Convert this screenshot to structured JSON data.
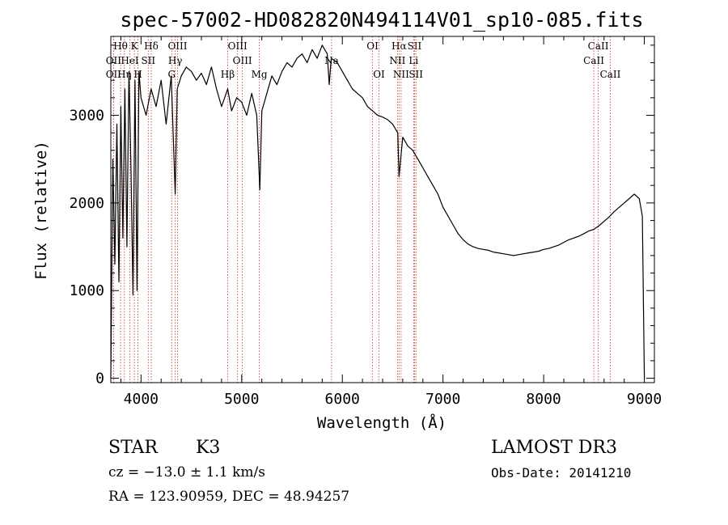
{
  "chart_data": {
    "type": "line",
    "title": "spec-57002-HD082820N494114V01_sp10-085.fits",
    "xlabel": "Wavelength (Å)",
    "ylabel": "Flux (relative)",
    "xlim": [
      3700,
      9100
    ],
    "ylim": [
      -50,
      3900
    ],
    "xticks": [
      4000,
      5000,
      6000,
      7000,
      8000,
      9000
    ],
    "yticks": [
      0,
      1000,
      2000,
      3000
    ],
    "series": [
      {
        "name": "flux",
        "x": [
          3700,
          3720,
          3740,
          3760,
          3780,
          3800,
          3820,
          3840,
          3860,
          3880,
          3900,
          3920,
          3940,
          3960,
          3980,
          4000,
          4050,
          4100,
          4150,
          4200,
          4250,
          4300,
          4340,
          4360,
          4400,
          4450,
          4500,
          4550,
          4600,
          4650,
          4700,
          4750,
          4800,
          4861,
          4900,
          4950,
          5000,
          5050,
          5100,
          5150,
          5180,
          5200,
          5250,
          5300,
          5350,
          5400,
          5450,
          5500,
          5550,
          5600,
          5650,
          5700,
          5750,
          5800,
          5850,
          5870,
          5890,
          5950,
          6000,
          6050,
          6100,
          6150,
          6200,
          6250,
          6300,
          6350,
          6400,
          6450,
          6500,
          6550,
          6563,
          6600,
          6650,
          6700,
          6750,
          6800,
          6850,
          6900,
          6950,
          7000,
          7050,
          7100,
          7150,
          7200,
          7250,
          7300,
          7350,
          7400,
          7450,
          7500,
          7550,
          7600,
          7650,
          7700,
          7750,
          7800,
          7850,
          7900,
          7950,
          8000,
          8050,
          8100,
          8150,
          8200,
          8250,
          8300,
          8350,
          8400,
          8450,
          8500,
          8550,
          8600,
          8650,
          8700,
          8750,
          8800,
          8850,
          8900,
          8950,
          8980,
          9000
        ],
        "y": [
          0,
          2500,
          1300,
          2900,
          1100,
          3100,
          1600,
          3300,
          1500,
          3500,
          2400,
          950,
          3400,
          1000,
          3500,
          3200,
          3000,
          3300,
          3100,
          3400,
          2900,
          3450,
          2100,
          3300,
          3450,
          3550,
          3500,
          3400,
          3480,
          3350,
          3550,
          3300,
          3100,
          3300,
          3050,
          3200,
          3150,
          3000,
          3250,
          3000,
          2150,
          3050,
          3250,
          3450,
          3350,
          3500,
          3600,
          3550,
          3650,
          3700,
          3600,
          3750,
          3650,
          3800,
          3700,
          3350,
          3650,
          3600,
          3500,
          3400,
          3300,
          3250,
          3200,
          3100,
          3050,
          3000,
          2980,
          2950,
          2900,
          2800,
          2300,
          2750,
          2650,
          2600,
          2500,
          2400,
          2300,
          2200,
          2100,
          1950,
          1850,
          1750,
          1650,
          1580,
          1530,
          1500,
          1480,
          1470,
          1460,
          1440,
          1430,
          1420,
          1410,
          1400,
          1410,
          1420,
          1430,
          1440,
          1450,
          1470,
          1480,
          1500,
          1520,
          1550,
          1580,
          1600,
          1620,
          1650,
          1680,
          1700,
          1740,
          1790,
          1840,
          1900,
          1950,
          2000,
          2050,
          2100,
          2050,
          1850,
          0
        ]
      }
    ],
    "line_markers": [
      {
        "label": "Hθ",
        "wl": 3797,
        "row": 0
      },
      {
        "label": "OII",
        "wl": 3727,
        "row": 1
      },
      {
        "label": "OII",
        "wl": 3727,
        "row": 2
      },
      {
        "label": "K",
        "wl": 3934,
        "row": 0
      },
      {
        "label": "HeI",
        "wl": 3889,
        "row": 1
      },
      {
        "label": "Hη",
        "wl": 3835,
        "row": 2
      },
      {
        "label": "Hδ",
        "wl": 4102,
        "row": 0
      },
      {
        "label": "SII",
        "wl": 4072,
        "row": 1
      },
      {
        "label": "H",
        "wl": 3970,
        "row": 2
      },
      {
        "label": "OIII",
        "wl": 4363,
        "row": 0
      },
      {
        "label": "Hγ",
        "wl": 4340,
        "row": 1
      },
      {
        "label": "G",
        "wl": 4305,
        "row": 2
      },
      {
        "label": "OIII",
        "wl": 4959,
        "row": 0
      },
      {
        "label": "OIII",
        "wl": 5007,
        "row": 1
      },
      {
        "label": "Hβ",
        "wl": 4861,
        "row": 2
      },
      {
        "label": "Mg",
        "wl": 5175,
        "row": 2
      },
      {
        "label": "Na",
        "wl": 5893,
        "row": 1
      },
      {
        "label": "OI",
        "wl": 6300,
        "row": 0
      },
      {
        "label": "OI",
        "wl": 6364,
        "row": 2
      },
      {
        "label": "Hα",
        "wl": 6563,
        "row": 0
      },
      {
        "label": "NII",
        "wl": 6548,
        "row": 1
      },
      {
        "label": "NII",
        "wl": 6584,
        "row": 2
      },
      {
        "label": "SII",
        "wl": 6717,
        "row": 0
      },
      {
        "label": "Li",
        "wl": 6708,
        "row": 1
      },
      {
        "label": "SII",
        "wl": 6731,
        "row": 2
      },
      {
        "label": "CaII",
        "wl": 8542,
        "row": 0
      },
      {
        "label": "CaII",
        "wl": 8498,
        "row": 1
      },
      {
        "label": "CaII",
        "wl": 8662,
        "row": 2
      }
    ]
  },
  "info": {
    "object_class": "STAR",
    "subclass": "K3",
    "survey": "LAMOST DR3",
    "redshift": "cz = −13.0 ± 1.1 km/s",
    "obs_date": "Obs-Date: 20141210",
    "coords": "RA = 123.90959, DEC =  48.94257"
  }
}
